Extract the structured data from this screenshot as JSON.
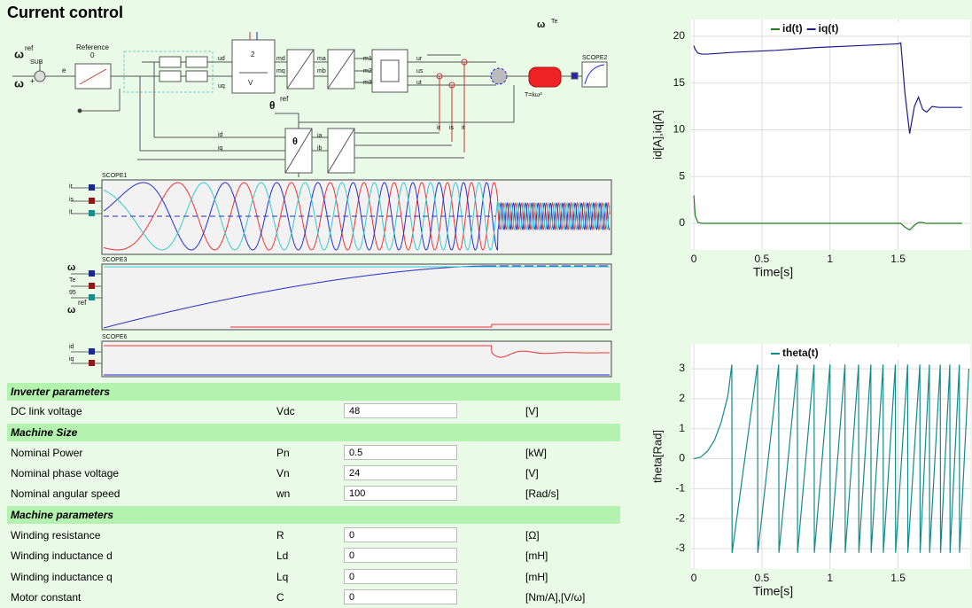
{
  "title": "Current control",
  "diagram": {
    "labels": [
      "ω",
      "ref",
      "SUB",
      "ω",
      "+",
      "Reference",
      "0",
      "e",
      "ud",
      "uq",
      "2",
      "V",
      "md",
      "mq",
      "ma",
      "mb",
      "m1",
      "m2",
      "m3",
      "ur",
      "us",
      "ut",
      "ir",
      "is",
      "it",
      "θ",
      "ref",
      "id",
      "iq",
      "ia",
      "ib",
      "θ",
      "T=kω²",
      "ω",
      "Te",
      "SCOPE2",
      "SCOPE1",
      "ir",
      "is",
      "it",
      "SCOPE3",
      "ω",
      "Te",
      "95",
      "ω",
      "ref",
      "SCOPE6",
      "id",
      "iq"
    ]
  },
  "table": {
    "sections": [
      {
        "title": "Inverter parameters",
        "rows": [
          {
            "label": "DC link voltage",
            "symbol": "Vdc",
            "value": 48,
            "unit": "[V]"
          }
        ]
      },
      {
        "title": "Machine Size",
        "rows": [
          {
            "label": "Nominal Power",
            "symbol": "Pn",
            "value": 0.5,
            "unit": "[kW]"
          },
          {
            "label": "Nominal phase voltage",
            "symbol": "Vn",
            "value": 24,
            "unit": "[V]"
          },
          {
            "label": "Nominal angular speed",
            "symbol": "wn",
            "value": 100,
            "unit": "[Rad/s]"
          }
        ]
      },
      {
        "title": "Machine parameters",
        "rows": [
          {
            "label": "Winding resistance",
            "symbol": "R",
            "value": 0,
            "unit": "[Ω]"
          },
          {
            "label": "Winding inductance d",
            "symbol": "Ld",
            "value": 0,
            "unit": "[mH]"
          },
          {
            "label": "Winding inductance q",
            "symbol": "Lq",
            "value": 0,
            "unit": "[mH]"
          },
          {
            "label": "Motor constant",
            "symbol": "C",
            "value": 0,
            "unit": "[Nm/A],[V/ω]"
          }
        ]
      }
    ]
  },
  "chart_data": [
    {
      "type": "line",
      "xlabel": "Time[s]",
      "ylabel": "id[A],iq[A]",
      "xlim": [
        -0.02,
        2.03
      ],
      "ylim": [
        -2.84,
        21.8
      ],
      "xticks": [
        0,
        0.5,
        1,
        1.5
      ],
      "yticks": [
        0,
        5,
        10,
        15,
        20
      ],
      "grid": true,
      "legend": "top",
      "x": [
        0,
        0.01,
        0.03,
        0.06,
        0.1,
        0.3,
        0.6,
        0.9,
        1.2,
        1.5,
        1.52,
        1.55,
        1.585,
        1.62,
        1.65,
        1.68,
        1.71,
        1.75,
        1.8,
        1.9,
        1.97
      ],
      "series": [
        {
          "name": "id(t)",
          "color": "#1e7d1e",
          "values": [
            3,
            0.8,
            0.1,
            0,
            0,
            0,
            0,
            0,
            0,
            0,
            0,
            -0.4,
            -0.7,
            -0.2,
            0.1,
            0.1,
            0,
            0,
            0,
            0,
            0
          ]
        },
        {
          "name": "iq(t)",
          "color": "#1a1a8c",
          "values": [
            19,
            18.6,
            18.2,
            18.1,
            18.1,
            18.3,
            18.5,
            18.8,
            19.0,
            19.2,
            19.3,
            14,
            9.6,
            12.5,
            13.5,
            12.2,
            11.9,
            12.5,
            12.4,
            12.4,
            12.4
          ]
        }
      ]
    },
    {
      "type": "line",
      "xlabel": "Time[s]",
      "ylabel": "theta[Rad]",
      "xlim": [
        -0.02,
        2.03
      ],
      "ylim": [
        -3.68,
        3.83
      ],
      "xticks": [
        0,
        0.5,
        1,
        1.5
      ],
      "yticks": [
        -3,
        -2,
        -1,
        0,
        1,
        2,
        3
      ],
      "grid": true,
      "legend": "top",
      "x": [
        0,
        0.05,
        0.1,
        0.15,
        0.2,
        0.25,
        0.279,
        0.281,
        0.468,
        0.47,
        0.623,
        0.625,
        0.76,
        0.762,
        0.883,
        0.885,
        1.0,
        1.002,
        1.11,
        1.112,
        1.21,
        1.212,
        1.3,
        1.302,
        1.39,
        1.392,
        1.48,
        1.482,
        1.57,
        1.572,
        1.66,
        1.662,
        1.73,
        1.732,
        1.81,
        1.812,
        1.88,
        1.882,
        1.95,
        1.952,
        2.02
      ],
      "series": [
        {
          "name": "theta(t)",
          "color": "#138a8a",
          "values": [
            0,
            0.05,
            0.25,
            0.6,
            1.2,
            2.1,
            3.14,
            -3.14,
            3.14,
            -3.14,
            3.14,
            -3.14,
            3.14,
            -3.14,
            3.14,
            -3.14,
            3.14,
            -3.14,
            3.14,
            -3.14,
            3.14,
            -3.14,
            3.14,
            -3.14,
            3.14,
            -3.14,
            3.14,
            -3.14,
            3.14,
            -3.14,
            3.14,
            -3.14,
            3.14,
            -3.14,
            3.14,
            -3.14,
            3.14,
            -3.14,
            3.14,
            -3.14,
            3.0
          ]
        }
      ]
    }
  ]
}
